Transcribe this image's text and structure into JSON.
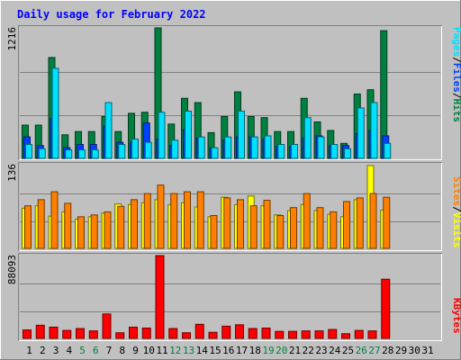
{
  "title": "Daily usage for February 2022",
  "colors": {
    "background": "#C0C0C0",
    "title": "#0000FF",
    "hits": "#008040",
    "files": "#0040FF",
    "pages": "#00E0FF",
    "visits": "#FFFF00",
    "sites": "#FF8000",
    "kbytes": "#FF0000",
    "weekend_day": "#008040",
    "weekday": "#000000",
    "grid": "#808080"
  },
  "chart_data": [
    {
      "type": "bar",
      "panel": "top",
      "ymax_label": "1216",
      "ylim": [
        0,
        1216
      ],
      "legend": [
        {
          "label": "Pages",
          "color": "#00E0FF"
        },
        {
          "label": "/",
          "color": "#000000"
        },
        {
          "label": "Files",
          "color": "#0040FF"
        },
        {
          "label": "/",
          "color": "#000000"
        },
        {
          "label": "Hits",
          "color": "#008040"
        }
      ],
      "categories": [
        "1",
        "2",
        "3",
        "4",
        "5",
        "6",
        "7",
        "8",
        "9",
        "10",
        "11",
        "12",
        "13",
        "14",
        "15",
        "16",
        "17",
        "18",
        "19",
        "20",
        "21",
        "22",
        "23",
        "24",
        "25",
        "26",
        "27",
        "28",
        "29",
        "30",
        "31"
      ],
      "series": [
        {
          "name": "Hits",
          "values": [
            310,
            310,
            940,
            220,
            250,
            250,
            390,
            250,
            420,
            430,
            1216,
            320,
            560,
            520,
            240,
            390,
            620,
            390,
            380,
            250,
            250,
            560,
            340,
            260,
            140,
            600,
            640,
            1190,
            null,
            null,
            null
          ]
        },
        {
          "name": "Files",
          "values": [
            200,
            120,
            370,
            100,
            130,
            130,
            300,
            150,
            150,
            330,
            180,
            120,
            270,
            190,
            100,
            170,
            200,
            200,
            180,
            110,
            110,
            190,
            210,
            120,
            120,
            230,
            260,
            210,
            null,
            null,
            null
          ]
        },
        {
          "name": "Pages",
          "values": [
            130,
            90,
            840,
            80,
            80,
            80,
            520,
            130,
            180,
            150,
            430,
            170,
            440,
            200,
            100,
            200,
            440,
            200,
            210,
            130,
            130,
            380,
            200,
            130,
            90,
            470,
            520,
            140,
            null,
            null,
            null
          ]
        }
      ]
    },
    {
      "type": "bar",
      "panel": "middle",
      "ymax_label": "136",
      "ylim": [
        0,
        136
      ],
      "legend": [
        {
          "label": "Sites",
          "color": "#FF8000"
        },
        {
          "label": "/",
          "color": "#000000"
        },
        {
          "label": "Visits",
          "color": "#FFFF00"
        }
      ],
      "categories": [
        "1",
        "2",
        "3",
        "4",
        "5",
        "6",
        "7",
        "8",
        "9",
        "10",
        "11",
        "12",
        "13",
        "14",
        "15",
        "16",
        "17",
        "18",
        "19",
        "20",
        "21",
        "22",
        "23",
        "24",
        "25",
        "26",
        "27",
        "28",
        "29",
        "30",
        "31"
      ],
      "series": [
        {
          "name": "Visits",
          "values": [
            66,
            70,
            53,
            60,
            48,
            52,
            58,
            73,
            72,
            75,
            80,
            72,
            75,
            68,
            52,
            84,
            72,
            86,
            70,
            55,
            62,
            72,
            62,
            56,
            52,
            80,
            136,
            63,
            null,
            null,
            null
          ]
        },
        {
          "name": "Sites",
          "values": [
            70,
            80,
            93,
            74,
            52,
            55,
            60,
            69,
            80,
            90,
            104,
            90,
            93,
            93,
            54,
            83,
            80,
            70,
            79,
            54,
            67,
            90,
            67,
            60,
            77,
            83,
            90,
            84,
            null,
            null,
            null
          ]
        }
      ]
    },
    {
      "type": "bar",
      "panel": "bottom",
      "ymax_label": "88093",
      "ylim": [
        0,
        88093
      ],
      "legend": [
        {
          "label": "KBytes",
          "color": "#FF0000"
        }
      ],
      "categories": [
        "1",
        "2",
        "3",
        "4",
        "5",
        "6",
        "7",
        "8",
        "9",
        "10",
        "11",
        "12",
        "13",
        "14",
        "15",
        "16",
        "17",
        "18",
        "19",
        "20",
        "21",
        "22",
        "23",
        "24",
        "25",
        "26",
        "27",
        "28",
        "29",
        "30",
        "31"
      ],
      "series": [
        {
          "name": "KBytes",
          "values": [
            9000,
            14000,
            12000,
            8500,
            10500,
            8000,
            26000,
            6000,
            12000,
            11000,
            88093,
            10500,
            6000,
            15000,
            6500,
            13000,
            14500,
            10500,
            11000,
            7500,
            7500,
            8000,
            8000,
            9500,
            5000,
            8500,
            8000,
            63000,
            null,
            null,
            null
          ]
        }
      ]
    }
  ],
  "x_axis": {
    "labels": [
      "1",
      "2",
      "3",
      "4",
      "5",
      "6",
      "7",
      "8",
      "9",
      "10",
      "11",
      "12",
      "13",
      "14",
      "15",
      "16",
      "17",
      "18",
      "19",
      "20",
      "21",
      "22",
      "23",
      "24",
      "25",
      "26",
      "27",
      "28",
      "29",
      "30",
      "31"
    ],
    "weekend_days": [
      "5",
      "6",
      "12",
      "13",
      "19",
      "20",
      "26",
      "27"
    ]
  }
}
